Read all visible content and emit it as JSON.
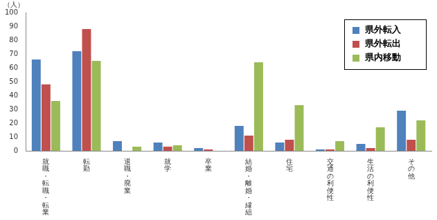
{
  "chart_data": {
    "type": "bar",
    "y_label": "（人）",
    "categories": [
      "就職・転職・転業",
      "転勤",
      "退職・廃業",
      "就学",
      "卒業",
      "結婚・離婚・縁組",
      "住宅",
      "交通の利便性",
      "生活の利便性",
      "その他"
    ],
    "series": [
      {
        "name": "県外転入",
        "color": "#4f81bd",
        "values": [
          66,
          72,
          7,
          6,
          2,
          18,
          6,
          1,
          5,
          29
        ]
      },
      {
        "name": "県外転出",
        "color": "#c0504d",
        "values": [
          48,
          88,
          0,
          3,
          1,
          11,
          8,
          1,
          2,
          8
        ]
      },
      {
        "name": "県内移動",
        "color": "#9bbb59",
        "values": [
          36,
          65,
          3,
          4,
          0,
          64,
          33,
          7,
          17,
          22
        ]
      }
    ],
    "ylim": [
      0,
      100
    ],
    "yticks": [
      0,
      10,
      20,
      30,
      40,
      50,
      60,
      70,
      80,
      90,
      100
    ],
    "grid": false,
    "legend": "upper right"
  }
}
